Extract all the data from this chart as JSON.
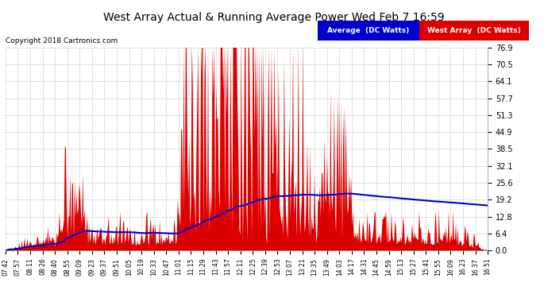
{
  "title": "West Array Actual & Running Average Power Wed Feb 7 16:59",
  "copyright": "Copyright 2018 Cartronics.com",
  "legend_avg": "Average  (DC Watts)",
  "legend_west": "West Array  (DC Watts)",
  "background_color": "#ffffff",
  "plot_bg_color": "#ffffff",
  "grid_color": "#bbbbbb",
  "bar_color": "#dd0000",
  "avg_line_color": "#0000cc",
  "ylim": [
    0.0,
    76.9
  ],
  "yticks": [
    0.0,
    6.4,
    12.8,
    19.2,
    25.6,
    32.1,
    38.5,
    44.9,
    51.3,
    57.7,
    64.1,
    70.5,
    76.9
  ],
  "xtick_labels": [
    "07:42",
    "07:57",
    "08:11",
    "08:26",
    "08:40",
    "08:55",
    "09:09",
    "09:23",
    "09:37",
    "09:51",
    "10:05",
    "10:19",
    "10:33",
    "10:47",
    "11:01",
    "11:15",
    "11:29",
    "11:43",
    "11:57",
    "12:11",
    "12:25",
    "12:39",
    "12:53",
    "13:07",
    "13:21",
    "13:35",
    "13:49",
    "14:03",
    "14:17",
    "14:31",
    "14:45",
    "14:59",
    "15:13",
    "15:27",
    "15:41",
    "15:55",
    "16:09",
    "16:23",
    "16:37",
    "16:51"
  ],
  "n_points": 540,
  "seed": 7
}
